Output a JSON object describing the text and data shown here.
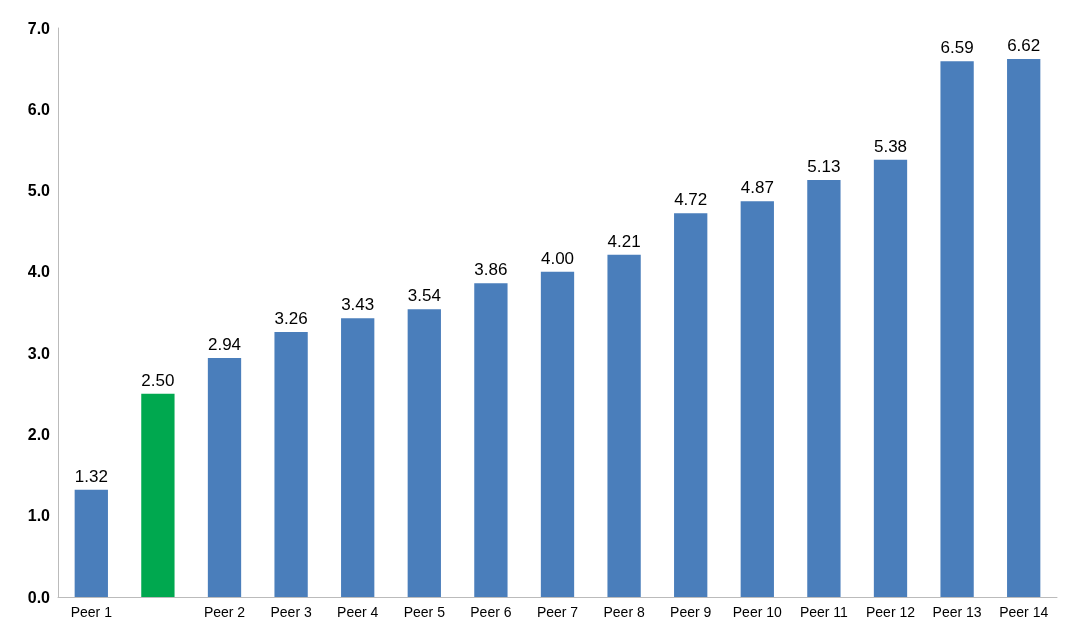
{
  "chart_data": {
    "type": "bar",
    "categories": [
      "Peer 1",
      null,
      "Peer 2",
      "Peer 3",
      "Peer 4",
      "Peer 5",
      "Peer 6",
      "Peer 7",
      "Peer 8",
      "Peer 9",
      "Peer 10",
      "Peer 11",
      "Peer 12",
      "Peer 13",
      "Peer 14"
    ],
    "values": [
      1.32,
      2.5,
      2.94,
      3.26,
      3.43,
      3.54,
      3.86,
      4.0,
      4.21,
      4.72,
      4.87,
      5.13,
      5.38,
      6.59,
      6.62
    ],
    "colors": [
      "#4a7ebb",
      "#00a84f",
      "#4a7ebb",
      "#4a7ebb",
      "#4a7ebb",
      "#4a7ebb",
      "#4a7ebb",
      "#4a7ebb",
      "#4a7ebb",
      "#4a7ebb",
      "#4a7ebb",
      "#4a7ebb",
      "#4a7ebb",
      "#4a7ebb",
      "#4a7ebb"
    ],
    "value_labels": [
      "1.32",
      "2.50",
      "2.94",
      "3.26",
      "3.43",
      "3.54",
      "3.86",
      "4.00",
      "4.21",
      "4.72",
      "4.87",
      "5.13",
      "5.38",
      "6.59",
      "6.62"
    ],
    "ylim": [
      0,
      7
    ],
    "yticks": [
      {
        "value": 0,
        "label": "0.0"
      },
      {
        "value": 1,
        "label": "1.0"
      },
      {
        "value": 2,
        "label": "2.0"
      },
      {
        "value": 3,
        "label": "3.0"
      },
      {
        "value": 4,
        "label": "4.0"
      },
      {
        "value": 5,
        "label": "5.0"
      },
      {
        "value": 6,
        "label": "6.0"
      },
      {
        "value": 7,
        "label": "7.0"
      }
    ],
    "grid": false
  }
}
